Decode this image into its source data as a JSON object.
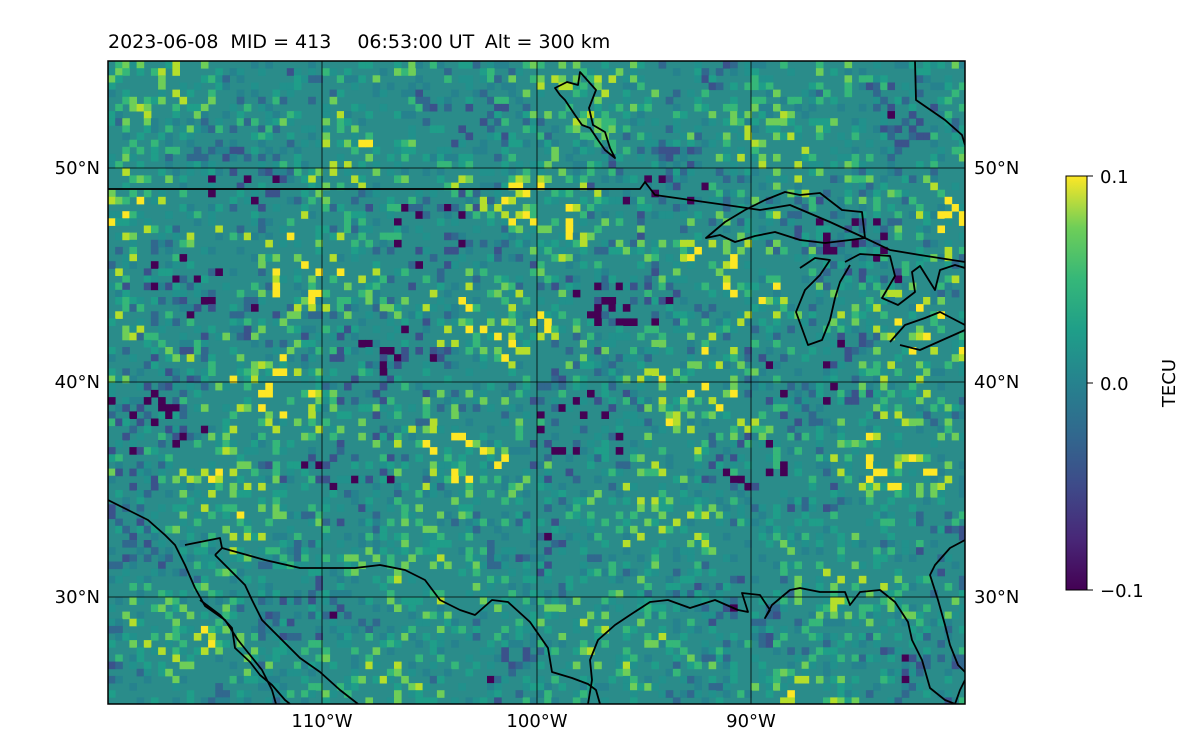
{
  "title": {
    "date": "2023-06-08",
    "mid": "MID = 413",
    "time": "06:53:00  UT",
    "alt": "Alt = 300 km"
  },
  "map": {
    "lon_range": [
      -120,
      -80
    ],
    "lat_range": [
      25,
      55
    ],
    "lon_ticks": [
      {
        "value": -110,
        "label": "110°W"
      },
      {
        "value": -100,
        "label": "100°W"
      },
      {
        "value": -90,
        "label": "90°W"
      }
    ],
    "lat_ticks": [
      {
        "value": 50,
        "label": "50°N"
      },
      {
        "value": 40,
        "label": "40°N"
      },
      {
        "value": 30,
        "label": "30°N"
      }
    ],
    "gridlines": true,
    "colormap": "viridis"
  },
  "colorbar": {
    "label": "TECU",
    "range": [
      -0.1,
      0.1
    ],
    "ticks": [
      {
        "value": 0.1,
        "label": "0.1"
      },
      {
        "value": 0.0,
        "label": "0.0"
      },
      {
        "value": -0.1,
        "label": "−0.1"
      }
    ],
    "colors": [
      "#440154",
      "#3b528b",
      "#21918c",
      "#5ec962",
      "#fde725"
    ]
  }
}
